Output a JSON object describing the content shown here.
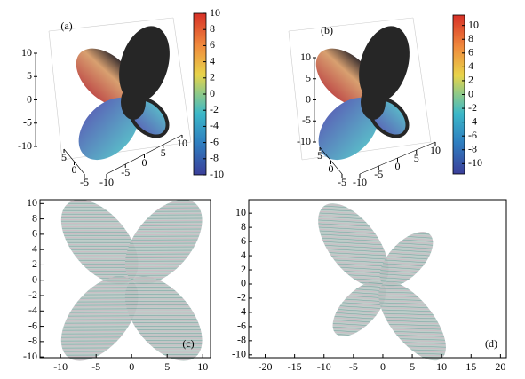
{
  "chart_data": [
    {
      "type": "surface3d",
      "label": "(a)",
      "zlim": [
        -10,
        10
      ],
      "zticks": [
        10,
        5,
        0,
        -5,
        -10
      ],
      "xlim": [
        -10,
        10
      ],
      "xticks": [
        -10,
        -5,
        0,
        5,
        10
      ],
      "ylim": [
        -5,
        5
      ],
      "yticks": [
        -5,
        0,
        5
      ],
      "colorbar_lim": [
        -10,
        10
      ],
      "colorbar_ticks": [
        10,
        8,
        6,
        4,
        2,
        0,
        -2,
        -4,
        -6,
        -8,
        -10
      ]
    },
    {
      "type": "surface3d",
      "label": "(b)",
      "zlim": [
        -10,
        10
      ],
      "zticks": [
        10,
        5,
        0,
        -5,
        -10
      ],
      "xlim": [
        -10,
        10
      ],
      "xticks": [
        -10,
        -5,
        0,
        5,
        10
      ],
      "ylim": [
        -5,
        5
      ],
      "yticks": [
        -5,
        0,
        5
      ],
      "colorbar_lim": [
        -11.5,
        11.5
      ],
      "colorbar_ticks": [
        10,
        8,
        6,
        4,
        2,
        0,
        -2,
        -4,
        -6,
        -8,
        -10
      ]
    },
    {
      "type": "pattern2d",
      "label": "(c)",
      "xlim": [
        -12.9,
        11.1
      ],
      "xticks": [
        -10,
        -5,
        0,
        5,
        10
      ],
      "ylim": [
        -10.1,
        10.5
      ],
      "yticks": [
        10,
        8,
        6,
        4,
        2,
        0,
        -2,
        -4,
        -6,
        -8,
        -10
      ]
    },
    {
      "type": "pattern2d",
      "label": "(d)",
      "xlim": [
        -22.8,
        21
      ],
      "xticks": [
        -20,
        -15,
        -10,
        -5,
        0,
        5,
        10,
        15,
        20
      ],
      "ylim": [
        -10.4,
        11.9
      ],
      "yticks": [
        10,
        8,
        6,
        4,
        2,
        0,
        -2,
        -4,
        -6,
        -8,
        -10
      ]
    }
  ]
}
